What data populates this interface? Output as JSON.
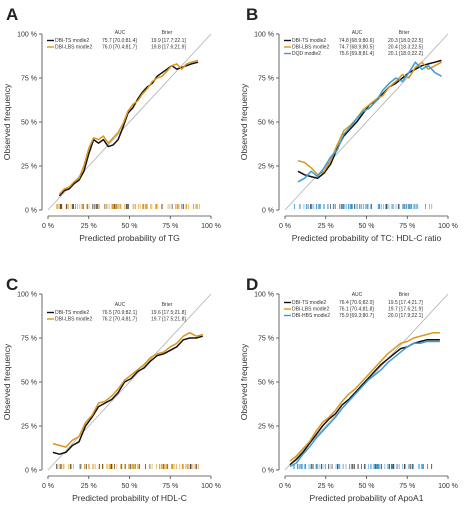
{
  "chart_data": [
    {
      "panel": "A",
      "type": "line",
      "xlabel": "Predicted probability of TG",
      "ylabel": "Observed frequency",
      "xlim": [
        0,
        100
      ],
      "ylim": [
        0,
        100
      ],
      "xticks": [
        "0 %",
        "25 %",
        "50 %",
        "75 %",
        "100 %"
      ],
      "yticks": [
        "0 %",
        "25 %",
        "50 %",
        "75 %",
        "100 %"
      ],
      "legend_header": [
        "AUC",
        "Brier"
      ],
      "series": [
        {
          "name": "DBI-TS modle2",
          "color": "#111111",
          "auc": "75.7 [70.0;81.4]",
          "brier": "19.9 [17.7;22.1]",
          "x": [
            7,
            10,
            13,
            16,
            19,
            22,
            25,
            28,
            31,
            34,
            37,
            40,
            43,
            46,
            49,
            52,
            55,
            58,
            61,
            64,
            67,
            70,
            73,
            76,
            79,
            82,
            85,
            88,
            92
          ],
          "y": [
            8,
            11,
            12,
            15,
            17,
            22,
            32,
            40,
            38,
            40,
            36,
            37,
            40,
            47,
            55,
            58,
            63,
            67,
            70,
            72,
            76,
            78,
            80,
            82,
            80,
            81,
            82,
            83,
            84
          ]
        },
        {
          "name": "DBI-LBS modle2",
          "color": "#D9961A",
          "auc": "76.0 [70.4;81.7]",
          "brier": "19.8 [17.6;21.9]",
          "x": [
            7,
            10,
            13,
            16,
            19,
            22,
            25,
            28,
            31,
            34,
            37,
            40,
            43,
            46,
            49,
            52,
            55,
            58,
            61,
            64,
            67,
            70,
            73,
            76,
            79,
            82,
            85,
            88,
            92
          ],
          "y": [
            9,
            12,
            13,
            16,
            18,
            25,
            35,
            41,
            40,
            42,
            38,
            41,
            44,
            49,
            56,
            60,
            62,
            66,
            69,
            73,
            75,
            76,
            79,
            82,
            83,
            80,
            83,
            84,
            85
          ]
        }
      ],
      "rug_colors": [
        "#D9961A",
        "#111111"
      ]
    },
    {
      "panel": "B",
      "type": "line",
      "xlabel": "Predicted probability of TC: HDL-C ratio",
      "ylabel": "Observed frequency",
      "xlim": [
        0,
        100
      ],
      "ylim": [
        0,
        100
      ],
      "xticks": [
        "0 %",
        "25 %",
        "50 %",
        "75 %",
        "100 %"
      ],
      "yticks": [
        "0 %",
        "25 %",
        "50 %",
        "75 %",
        "100 %"
      ],
      "legend_header": [
        "AUC",
        "Brier"
      ],
      "series": [
        {
          "name": "DBI-TS modle2",
          "color": "#111111",
          "auc": "74.8 [68.9;80.6]",
          "brier": "20.3 [18.0;22.5]",
          "x": [
            8,
            12,
            16,
            20,
            24,
            28,
            32,
            36,
            40,
            44,
            48,
            52,
            56,
            60,
            64,
            68,
            72,
            76,
            80,
            84,
            88,
            92,
            96
          ],
          "y": [
            22,
            20,
            19,
            18,
            21,
            26,
            35,
            42,
            46,
            50,
            55,
            60,
            62,
            66,
            70,
            72,
            75,
            78,
            80,
            82,
            83,
            84,
            85
          ]
        },
        {
          "name": "DBI-LBS modle2",
          "color": "#D9961A",
          "auc": "74.7 [68.9;80.5]",
          "brier": "20.4 [18.3;22.5]",
          "x": [
            8,
            12,
            16,
            20,
            24,
            28,
            32,
            36,
            40,
            44,
            48,
            52,
            56,
            60,
            64,
            68,
            72,
            76,
            80,
            84,
            88,
            92,
            96
          ],
          "y": [
            28,
            27,
            24,
            20,
            22,
            28,
            37,
            45,
            48,
            52,
            57,
            60,
            63,
            65,
            70,
            73,
            77,
            75,
            81,
            84,
            80,
            82,
            84
          ]
        },
        {
          "name": "DQD modle2",
          "color": "#3F9BD6",
          "auc": "75.6 [69.8;81.4]",
          "brier": "20.1 [18.0;22.2]",
          "x": [
            8,
            12,
            16,
            20,
            24,
            28,
            32,
            36,
            40,
            44,
            48,
            52,
            56,
            60,
            64,
            68,
            72,
            76,
            80,
            84,
            88,
            92,
            96
          ],
          "y": [
            16,
            18,
            22,
            19,
            24,
            30,
            34,
            43,
            47,
            52,
            56,
            58,
            62,
            68,
            72,
            75,
            73,
            78,
            84,
            80,
            82,
            78,
            76
          ]
        }
      ],
      "rug_colors": [
        "#3F9BD6",
        "#111111"
      ]
    },
    {
      "panel": "C",
      "type": "line",
      "xlabel": "Predicted probability of HDL-C",
      "ylabel": "Observed frequency",
      "xlim": [
        0,
        100
      ],
      "ylim": [
        0,
        100
      ],
      "xticks": [
        "0 %",
        "25 %",
        "50 %",
        "75 %",
        "100 %"
      ],
      "yticks": [
        "0 %",
        "25 %",
        "50 %",
        "75 %",
        "100 %"
      ],
      "legend_header": [
        "AUC",
        "Brier"
      ],
      "series": [
        {
          "name": "DBI-TS modle2",
          "color": "#111111",
          "auc": "76.5 [70.9;82.1]",
          "brier": "19.6 [17.5;21.8]",
          "x": [
            3,
            7,
            11,
            15,
            19,
            23,
            27,
            31,
            35,
            39,
            43,
            47,
            51,
            55,
            59,
            63,
            67,
            71,
            75,
            79,
            83,
            87,
            91,
            95
          ],
          "y": [
            10,
            9,
            10,
            14,
            16,
            25,
            30,
            36,
            38,
            40,
            44,
            50,
            52,
            56,
            58,
            62,
            65,
            66,
            68,
            70,
            74,
            75,
            75,
            76
          ]
        },
        {
          "name": "DBI-LBS modle2",
          "color": "#D9961A",
          "auc": "76.2 [70.4;81.7]",
          "brier": "19.7 [17.5;21.8]",
          "x": [
            3,
            7,
            11,
            15,
            19,
            23,
            27,
            31,
            35,
            39,
            43,
            47,
            51,
            55,
            59,
            63,
            67,
            71,
            75,
            79,
            83,
            87,
            91,
            95
          ],
          "y": [
            15,
            14,
            13,
            17,
            19,
            27,
            31,
            38,
            39,
            42,
            46,
            51,
            54,
            57,
            60,
            64,
            66,
            67,
            70,
            72,
            76,
            78,
            76,
            77
          ]
        }
      ],
      "rug_colors": [
        "#D9961A",
        "#111111"
      ]
    },
    {
      "panel": "D",
      "type": "line",
      "xlabel": "Predicted probability of ApoA1",
      "ylabel": "Observed frequency",
      "xlim": [
        0,
        100
      ],
      "ylim": [
        0,
        100
      ],
      "xticks": [
        "0 %",
        "25 %",
        "50 %",
        "75 %",
        "100 %"
      ],
      "yticks": [
        "0 %",
        "25 %",
        "50 %",
        "75 %",
        "100 %"
      ],
      "legend_header": [
        "AUC",
        "Brier"
      ],
      "series": [
        {
          "name": "DBI-TS modle2",
          "color": "#111111",
          "auc": "76.4 [70.6;82.0]",
          "brier": "19.5 [17.4;21.7]",
          "x": [
            3,
            7,
            11,
            15,
            19,
            23,
            27,
            31,
            35,
            39,
            43,
            47,
            51,
            55,
            59,
            63,
            67,
            71,
            75,
            79,
            83,
            87,
            91,
            95
          ],
          "y": [
            3,
            6,
            10,
            15,
            20,
            25,
            29,
            32,
            37,
            40,
            44,
            48,
            52,
            56,
            60,
            63,
            66,
            69,
            70,
            72,
            73,
            74,
            74,
            74
          ]
        },
        {
          "name": "DBI-LBS modle2",
          "color": "#D9961A",
          "auc": "76.1 [70.4;81.8]",
          "brier": "19.7 [17.6;21.9]",
          "x": [
            3,
            7,
            11,
            15,
            19,
            23,
            27,
            31,
            35,
            39,
            43,
            47,
            51,
            55,
            59,
            63,
            67,
            71,
            75,
            79,
            83,
            87,
            91,
            95
          ],
          "y": [
            5,
            8,
            12,
            16,
            22,
            27,
            30,
            34,
            39,
            43,
            46,
            50,
            54,
            58,
            62,
            66,
            69,
            72,
            73,
            75,
            76,
            77,
            78,
            78
          ]
        },
        {
          "name": "DBI-HBS modle2",
          "color": "#3F9BD6",
          "auc": "75.9 [69.3;80.7]",
          "brier": "20.0 [17.9;22.1]",
          "x": [
            3,
            7,
            11,
            15,
            19,
            23,
            27,
            31,
            35,
            39,
            43,
            47,
            51,
            55,
            59,
            63,
            67,
            71,
            75,
            79,
            83,
            87,
            91,
            95
          ],
          "y": [
            2,
            4,
            9,
            13,
            18,
            22,
            26,
            30,
            35,
            39,
            43,
            47,
            51,
            54,
            57,
            61,
            64,
            67,
            70,
            72,
            72,
            73,
            73,
            73
          ]
        }
      ],
      "rug_colors": [
        "#3F9BD6",
        "#111111"
      ]
    }
  ]
}
